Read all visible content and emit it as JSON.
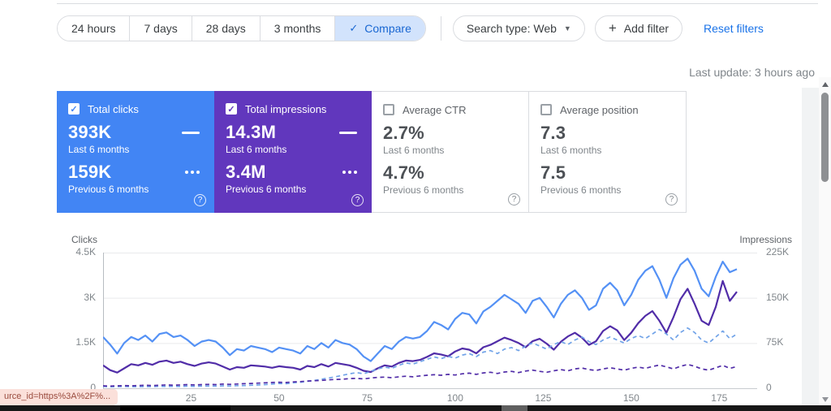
{
  "filter_bar": {
    "date_ranges": [
      "24 hours",
      "7 days",
      "28 days",
      "3 months"
    ],
    "compare_label": "Compare",
    "search_type_label": "Search type: Web",
    "add_filter_label": "Add filter",
    "reset_filters_label": "Reset filters"
  },
  "last_update": "Last update: 3 hours ago",
  "metric_cards": [
    {
      "label": "Total clicks",
      "checked": true,
      "color": "#4285f4",
      "current_value": "393K",
      "current_label": "Last 6 months",
      "previous_value": "159K",
      "previous_label": "Previous 6 months"
    },
    {
      "label": "Total impressions",
      "checked": true,
      "color": "#6137bd",
      "current_value": "14.3M",
      "current_label": "Last 6 months",
      "previous_value": "3.4M",
      "previous_label": "Previous 6 months"
    },
    {
      "label": "Average CTR",
      "checked": false,
      "color": null,
      "current_value": "2.7%",
      "current_label": "Last 6 months",
      "previous_value": "4.7%",
      "previous_label": "Previous 6 months"
    },
    {
      "label": "Average position",
      "checked": false,
      "color": null,
      "current_value": "7.3",
      "current_label": "Last 6 months",
      "previous_value": "7.5",
      "previous_label": "Previous 6 months"
    }
  ],
  "status_tooltip": "urce_id=https%3A%2F%...",
  "chart_data": {
    "type": "line",
    "grid": true,
    "legend_position": "none",
    "x_step": 2,
    "x_max": 180,
    "x_ticks": [
      25,
      50,
      75,
      100,
      125,
      150,
      175
    ],
    "left_axis": {
      "label": "Clicks",
      "max": 4500,
      "ticks": [
        "0",
        "1.5K",
        "3K",
        "4.5K"
      ]
    },
    "right_axis": {
      "label": "Impressions",
      "max": 225000,
      "ticks": [
        "0",
        "75K",
        "150K",
        "225K"
      ]
    },
    "series": [
      {
        "name": "Clicks - Last 6 months",
        "axis": "left",
        "style": "solid",
        "color": "#5491f5",
        "values": [
          1700,
          1450,
          1150,
          1500,
          1700,
          1600,
          1750,
          1550,
          1800,
          1850,
          1700,
          1750,
          1600,
          1400,
          1550,
          1600,
          1550,
          1350,
          1100,
          1300,
          1250,
          1400,
          1350,
          1300,
          1200,
          1350,
          1300,
          1250,
          1150,
          1400,
          1300,
          1500,
          1350,
          1600,
          1500,
          1450,
          1300,
          1050,
          900,
          1150,
          1400,
          1300,
          1550,
          1700,
          1650,
          1700,
          1900,
          2200,
          2100,
          1950,
          2300,
          2500,
          2450,
          2150,
          2550,
          2700,
          2900,
          3100,
          2950,
          2800,
          2500,
          2900,
          3000,
          2700,
          2350,
          2800,
          3100,
          3250,
          3000,
          2600,
          2750,
          3300,
          3500,
          3250,
          2750,
          3100,
          3600,
          3900,
          4050,
          3600,
          3000,
          3650,
          4100,
          4300,
          3900,
          3300,
          3050,
          3700,
          4200,
          3850,
          3950
        ]
      },
      {
        "name": "Impressions - Last 6 months",
        "axis": "right",
        "style": "solid",
        "color": "#512da8",
        "values": [
          38000,
          30000,
          26000,
          33000,
          40000,
          38000,
          42000,
          39000,
          44000,
          46000,
          42000,
          44000,
          40000,
          37000,
          41000,
          43000,
          41000,
          36000,
          31000,
          35000,
          34000,
          38000,
          37000,
          36000,
          34000,
          36500,
          35000,
          34000,
          31000,
          37000,
          35000,
          40000,
          36000,
          42000,
          40000,
          38000,
          34000,
          29000,
          27000,
          33000,
          38000,
          36000,
          42000,
          46000,
          45000,
          47000,
          52000,
          58000,
          56000,
          53000,
          61000,
          66000,
          64000,
          58000,
          68000,
          72000,
          78000,
          84000,
          80000,
          75000,
          68000,
          78000,
          82000,
          74000,
          64000,
          77000,
          86000,
          92000,
          84000,
          72000,
          78000,
          95000,
          103000,
          96000,
          80000,
          92000,
          108000,
          120000,
          128000,
          112000,
          92000,
          118000,
          148000,
          165000,
          140000,
          112000,
          105000,
          135000,
          178000,
          145000,
          160000
        ]
      },
      {
        "name": "Clicks - Previous 6 months",
        "axis": "left",
        "style": "dashed",
        "color": "#71a3e8",
        "values": [
          60,
          50,
          55,
          60,
          50,
          55,
          60,
          55,
          65,
          60,
          65,
          60,
          70,
          65,
          70,
          75,
          70,
          80,
          75,
          85,
          90,
          100,
          110,
          120,
          140,
          160,
          150,
          180,
          200,
          230,
          260,
          300,
          340,
          380,
          430,
          480,
          520,
          480,
          560,
          640,
          700,
          660,
          760,
          840,
          800,
          880,
          960,
          1040,
          980,
          1060,
          1000,
          1100,
          1150,
          1050,
          1200,
          1250,
          1150,
          1300,
          1350,
          1250,
          1400,
          1500,
          1400,
          1300,
          1450,
          1550,
          1450,
          1600,
          1700,
          1550,
          1450,
          1600,
          1700,
          1600,
          1500,
          1650,
          1750,
          1650,
          1800,
          1950,
          1800,
          1600,
          1850,
          2000,
          1850,
          1600,
          1500,
          1700,
          1900,
          1650,
          1800
        ]
      },
      {
        "name": "Impressions - Previous 6 months",
        "axis": "right",
        "style": "dashed",
        "color": "#512da8",
        "values": [
          4000,
          3500,
          4000,
          4500,
          4000,
          4500,
          5000,
          4500,
          5000,
          5500,
          5000,
          5500,
          6000,
          5500,
          6000,
          6500,
          6000,
          7000,
          6500,
          7000,
          7500,
          8000,
          8500,
          9000,
          9500,
          10000,
          9500,
          10500,
          11000,
          12000,
          12500,
          13000,
          14000,
          14500,
          15000,
          16000,
          16500,
          15500,
          17000,
          18000,
          18500,
          17500,
          19000,
          20000,
          19000,
          20500,
          21500,
          22500,
          21500,
          23000,
          22000,
          24000,
          25000,
          23000,
          25500,
          26500,
          24500,
          27000,
          28000,
          26000,
          28500,
          30000,
          28000,
          26500,
          29000,
          31000,
          29000,
          32000,
          33500,
          31000,
          29500,
          32000,
          34000,
          32000,
          30000,
          33000,
          35000,
          33000,
          36000,
          38500,
          35500,
          32000,
          36500,
          39500,
          36500,
          32000,
          30000,
          34000,
          38000,
          33000,
          36000
        ]
      }
    ]
  }
}
